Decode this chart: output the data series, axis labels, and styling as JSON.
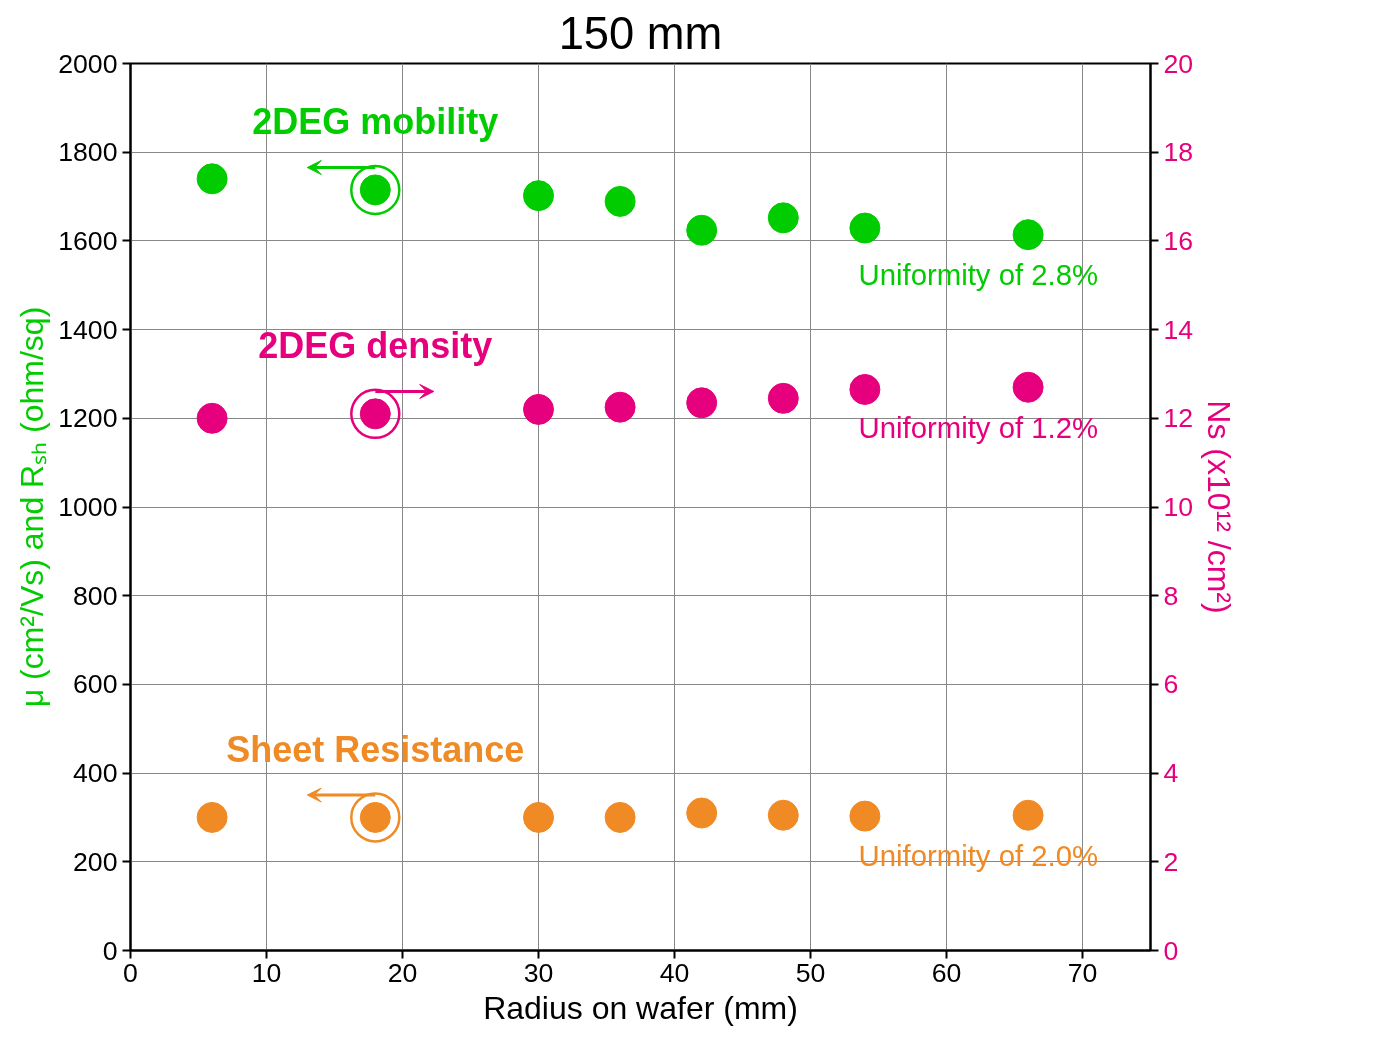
{
  "chart_data": {
    "type": "scatter",
    "title": "150 mm",
    "xlabel": "Radius on wafer (mm)",
    "ylabel": "μ (cm²/Vs) and Rₛₕ (ohm/sq)",
    "y2label": "Ns (x10¹² /cm²)",
    "x": [
      6,
      18,
      30,
      36,
      42,
      48,
      54,
      66
    ],
    "series": [
      {
        "name": "2DEG mobility",
        "color": "#00cc00",
        "values": [
          1740,
          1715,
          1702,
          1689,
          1624,
          1652,
          1629,
          1614
        ]
      },
      {
        "name": "2DEG density",
        "color": "#e6007e",
        "axis": "y2",
        "values": [
          12.0,
          12.1,
          12.2,
          12.25,
          12.35,
          12.45,
          12.65,
          12.7
        ]
      },
      {
        "name": "Sheet Resistance",
        "color": "#f08a24",
        "values": [
          300,
          300,
          300,
          300,
          310,
          305,
          303,
          305
        ]
      }
    ],
    "annotations": [
      "Uniformity of 2.8%",
      "Uniformity of 1.2%",
      "Uniformity of 2.0%"
    ],
    "xlim": [
      0,
      75
    ],
    "xticks": [
      0,
      10,
      20,
      30,
      40,
      50,
      60,
      70
    ],
    "ylim": [
      0,
      2000
    ],
    "yticks": [
      0,
      200,
      400,
      600,
      800,
      1000,
      1200,
      1400,
      1600,
      1800,
      2000
    ],
    "y2lim": [
      0,
      20
    ],
    "y2ticks": [
      0,
      2,
      4,
      6,
      8,
      10,
      12,
      14,
      16,
      18,
      20
    ],
    "grid": true,
    "marker": "circle"
  }
}
